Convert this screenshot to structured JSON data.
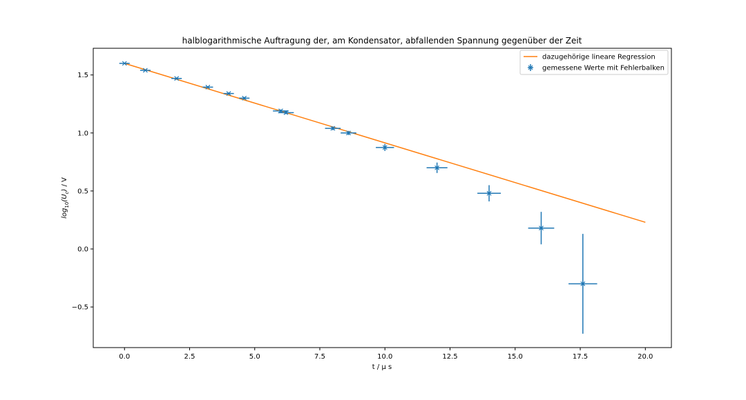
{
  "chart_data": {
    "type": "scatter",
    "title": "halblogarithmische Auftragung der, am Kondensator, abfallenden Spannung gegenüber der Zeit",
    "xlabel": "t / μ s",
    "ylabel": "log₁₀(U_c) / V",
    "xlim": [
      -1.2,
      21.0
    ],
    "ylim": [
      -0.85,
      1.73
    ],
    "xticks": [
      0.0,
      2.5,
      5.0,
      7.5,
      10.0,
      12.5,
      15.0,
      17.5,
      20.0
    ],
    "xtick_labels": [
      "0.0",
      "2.5",
      "5.0",
      "7.5",
      "10.0",
      "12.5",
      "15.0",
      "17.5",
      "20.0"
    ],
    "yticks": [
      1.5,
      1.0,
      0.5,
      0.0,
      -0.5
    ],
    "ytick_labels": [
      "1.5",
      "1.0",
      "0.5",
      "0.0",
      "−0.5"
    ],
    "grid": false,
    "legend_position": "top-right",
    "colors": {
      "regression": "#ff7f0e",
      "measured": "#1f77b4"
    },
    "series": [
      {
        "name": "dazugehörige lineare Regression",
        "type": "line",
        "x": [
          0.0,
          20.0
        ],
        "y": [
          1.6,
          0.23
        ]
      },
      {
        "name": "gemessene Werte mit Fehlerbalken",
        "type": "errorbar",
        "marker": "x",
        "points": [
          {
            "x": 0.0,
            "y": 1.6,
            "xerr": 0.2,
            "yerr": 0.005
          },
          {
            "x": 0.8,
            "y": 1.54,
            "xerr": 0.2,
            "yerr": 0.006
          },
          {
            "x": 2.0,
            "y": 1.47,
            "xerr": 0.2,
            "yerr": 0.007
          },
          {
            "x": 3.2,
            "y": 1.395,
            "xerr": 0.2,
            "yerr": 0.008
          },
          {
            "x": 4.0,
            "y": 1.34,
            "xerr": 0.2,
            "yerr": 0.009
          },
          {
            "x": 4.6,
            "y": 1.3,
            "xerr": 0.2,
            "yerr": 0.01
          },
          {
            "x": 6.0,
            "y": 1.19,
            "xerr": 0.3,
            "yerr": 0.012
          },
          {
            "x": 6.2,
            "y": 1.175,
            "xerr": 0.3,
            "yerr": 0.013
          },
          {
            "x": 8.0,
            "y": 1.04,
            "xerr": 0.3,
            "yerr": 0.016
          },
          {
            "x": 8.6,
            "y": 1.0,
            "xerr": 0.3,
            "yerr": 0.018
          },
          {
            "x": 10.0,
            "y": 0.875,
            "xerr": 0.35,
            "yerr": 0.03
          },
          {
            "x": 12.0,
            "y": 0.7,
            "xerr": 0.4,
            "yerr": 0.045
          },
          {
            "x": 14.0,
            "y": 0.48,
            "xerr": 0.45,
            "yerr": 0.07
          },
          {
            "x": 16.0,
            "y": 0.18,
            "xerr": 0.5,
            "yerr": 0.14
          },
          {
            "x": 17.6,
            "y": -0.3,
            "xerr": 0.55,
            "yerr": 0.43
          }
        ]
      }
    ]
  }
}
